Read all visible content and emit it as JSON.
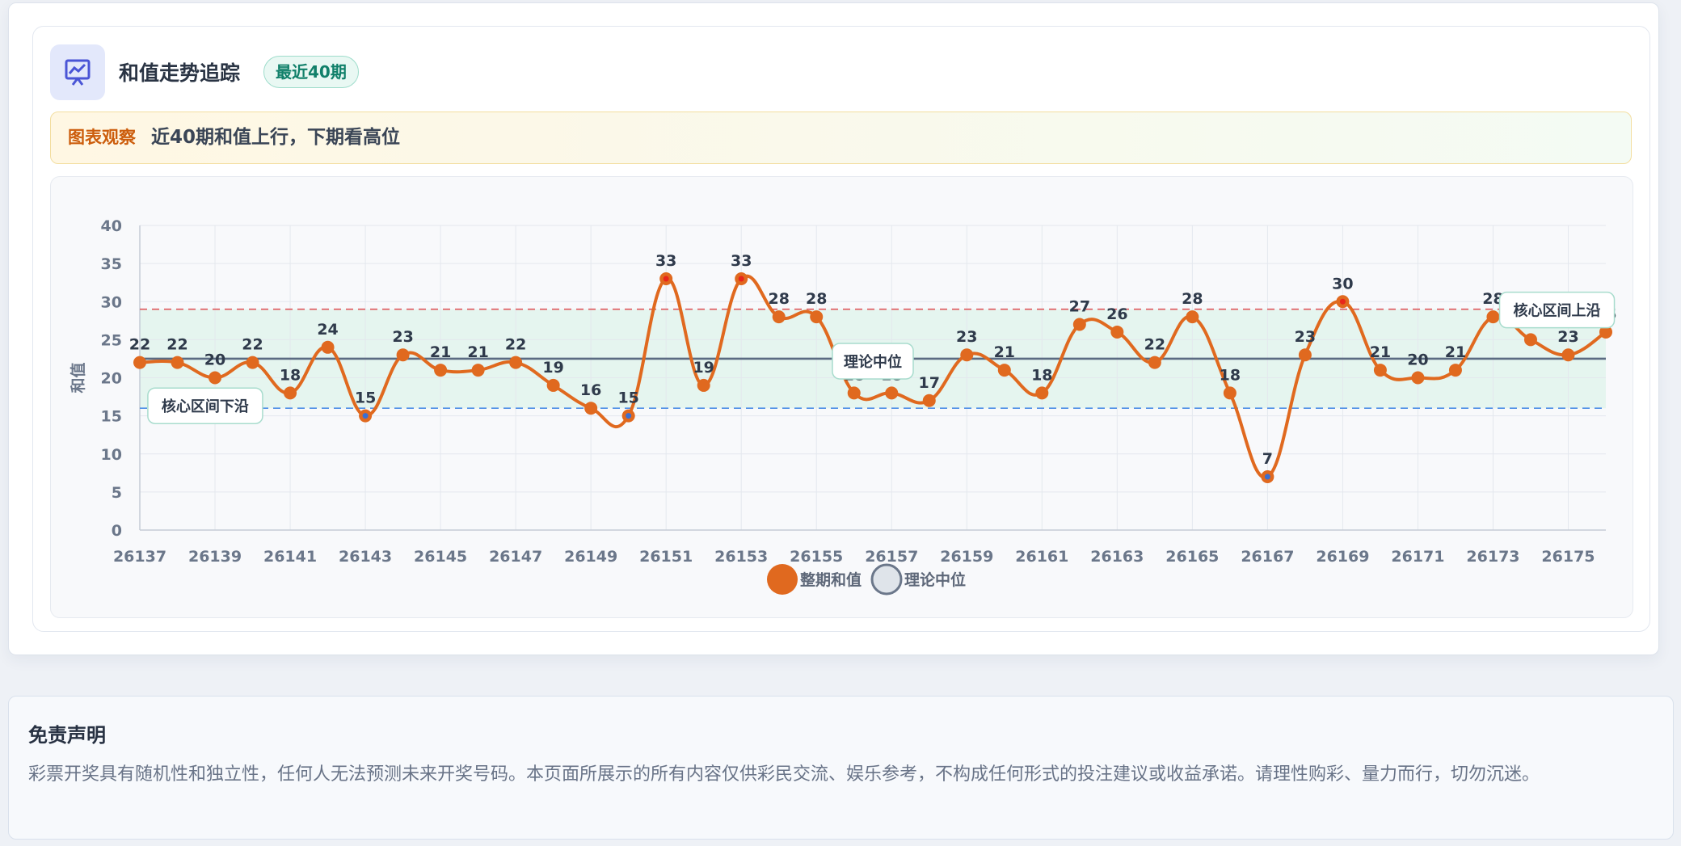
{
  "header": {
    "title": "和值走势追踪",
    "badge": "最近40期"
  },
  "insight": {
    "label": "图表观察",
    "text": "近40期和值上行，下期看高位"
  },
  "chart_data": {
    "type": "line",
    "ylabel": "和值",
    "categories": [
      "26137",
      "26138",
      "26139",
      "26140",
      "26141",
      "26142",
      "26143",
      "26144",
      "26145",
      "26146",
      "26147",
      "26148",
      "26149",
      "26150",
      "26151",
      "26152",
      "26153",
      "26154",
      "26155",
      "26156",
      "26157",
      "26158",
      "26159",
      "26160",
      "26161",
      "26162",
      "26163",
      "26164",
      "26165",
      "26166",
      "26167",
      "26168",
      "26169",
      "26170",
      "26171",
      "26172",
      "26173",
      "26174",
      "26175",
      "26176"
    ],
    "series": [
      {
        "name": "整期和值",
        "color": "#e0691f",
        "values": [
          22,
          22,
          20,
          22,
          18,
          24,
          15,
          23,
          21,
          21,
          22,
          19,
          16,
          15,
          33,
          19,
          33,
          28,
          28,
          18,
          18,
          17,
          23,
          21,
          18,
          27,
          26,
          22,
          28,
          18,
          7,
          23,
          30,
          21,
          20,
          21,
          28,
          25,
          23,
          26
        ]
      }
    ],
    "reference_lines": [
      {
        "name": "理论中位",
        "value": 22.5,
        "color": "#5b6b82"
      }
    ],
    "band": {
      "lower": 16,
      "upper": 29,
      "lower_label": "核心区间下沿",
      "upper_label": "核心区间上沿",
      "lower_color": "#4d8ee6",
      "upper_color": "#e0575b",
      "fill": "#e2f4ec"
    },
    "ylim": [
      0,
      40
    ],
    "yticks": [
      0,
      5,
      10,
      15,
      20,
      25,
      30,
      35,
      40
    ],
    "grid": true
  },
  "disclaimer": {
    "title": "免责声明",
    "text": "彩票开奖具有随机性和独立性，任何人无法预测未来开奖号码。本页面所展示的所有内容仅供彩民交流、娱乐参考，不构成任何形式的投注建议或收益承诺。请理性购彩、量力而行，切勿沉迷。"
  }
}
